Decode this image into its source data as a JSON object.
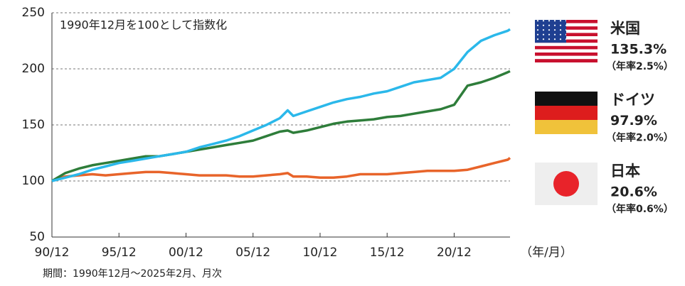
{
  "chart_data": {
    "type": "line",
    "annotation": "1990年12月を100として指数化",
    "x_axis_label": "（年/月）",
    "note": "期間：1990年12月～2025年2月、月次",
    "x": [
      1990.917,
      1991.917,
      1992.917,
      1993.917,
      1994.917,
      1995.917,
      1996.917,
      1997.917,
      1998.917,
      1999.917,
      2000.917,
      2001.917,
      2002.917,
      2003.917,
      2004.917,
      2005.917,
      2006.917,
      2007.917,
      2008.5,
      2008.917,
      2009.917,
      2010.917,
      2011.917,
      2012.917,
      2013.917,
      2014.917,
      2015.917,
      2016.917,
      2017.917,
      2018.917,
      2019.917,
      2020.917,
      2021.917,
      2022.917,
      2023.917,
      2024.917,
      2025.083
    ],
    "xlim": [
      1990.917,
      2025.083
    ],
    "xticks": [
      {
        "value": 1990.917,
        "label": "90/12"
      },
      {
        "value": 1995.917,
        "label": "95/12"
      },
      {
        "value": 2000.917,
        "label": "00/12"
      },
      {
        "value": 2005.917,
        "label": "05/12"
      },
      {
        "value": 2010.917,
        "label": "10/12"
      },
      {
        "value": 2015.917,
        "label": "15/12"
      },
      {
        "value": 2020.917,
        "label": "20/12"
      }
    ],
    "ylim": [
      50,
      250
    ],
    "yticks": [
      50,
      100,
      150,
      200,
      250
    ],
    "grid": true,
    "series": [
      {
        "name": "米国",
        "color": "#2bb8ea",
        "change": "135.3%",
        "annual": "（年率2.5%）",
        "values": [
          100,
          103,
          106,
          110,
          113,
          116,
          118,
          120,
          122,
          124,
          126,
          130,
          133,
          136,
          140,
          145,
          150,
          156,
          163,
          158,
          162,
          166,
          170,
          173,
          175,
          178,
          180,
          184,
          188,
          190,
          192,
          200,
          215,
          225,
          230,
          234,
          235.3
        ]
      },
      {
        "name": "ドイツ",
        "color": "#2e7d3a",
        "change": "97.9%",
        "annual": "（年率2.0%）",
        "values": [
          100,
          107,
          111,
          114,
          116,
          118,
          120,
          122,
          122,
          124,
          126,
          128,
          130,
          132,
          134,
          136,
          140,
          144,
          145,
          143,
          145,
          148,
          151,
          153,
          154,
          155,
          157,
          158,
          160,
          162,
          164,
          168,
          185,
          188,
          192,
          197,
          197.9
        ]
      },
      {
        "name": "日本",
        "color": "#e8642a",
        "change": "20.6%",
        "annual": "（年率0.6%）",
        "values": [
          100,
          104,
          105,
          106,
          105,
          106,
          107,
          108,
          108,
          107,
          106,
          105,
          105,
          105,
          104,
          104,
          105,
          106,
          107,
          104,
          104,
          103,
          103,
          104,
          106,
          106,
          106,
          107,
          108,
          109,
          109,
          109,
          110,
          113,
          116,
          119,
          120.6
        ]
      }
    ]
  }
}
